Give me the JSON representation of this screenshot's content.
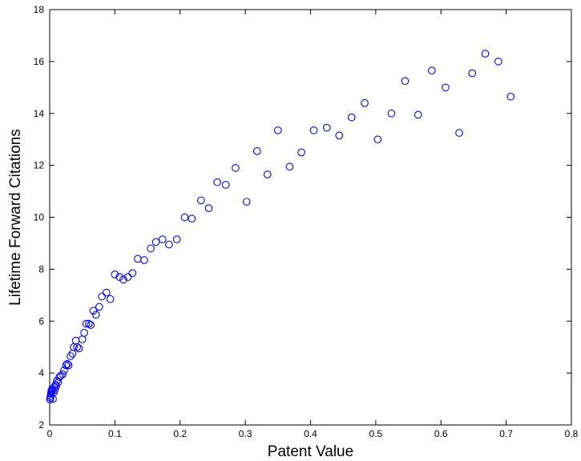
{
  "chart_data": {
    "type": "scatter",
    "title": "",
    "xlabel": "Patent Value",
    "ylabel": "Lifetime Forward Citations",
    "xlim": [
      0,
      0.8
    ],
    "ylim": [
      2,
      18
    ],
    "xticks": [
      "0",
      "0.1",
      "0.2",
      "0.3",
      "0.4",
      "0.5",
      "0.6",
      "0.7",
      "0.8"
    ],
    "yticks": [
      "2",
      "4",
      "6",
      "8",
      "10",
      "12",
      "14",
      "16",
      "18"
    ],
    "grid": false,
    "legend": "none",
    "marker": "circle-open",
    "series_color": "#0000ff",
    "series": [
      {
        "points": [
          [
            0.0005,
            2.98
          ],
          [
            0.001,
            3.05
          ],
          [
            0.0015,
            3.12
          ],
          [
            0.002,
            3.2
          ],
          [
            0.0025,
            3.28
          ],
          [
            0.003,
            3.33
          ],
          [
            0.0035,
            3.3
          ],
          [
            0.004,
            3.4
          ],
          [
            0.005,
            3.0
          ],
          [
            0.006,
            3.25
          ],
          [
            0.007,
            3.45
          ],
          [
            0.008,
            3.35
          ],
          [
            0.009,
            3.55
          ],
          [
            0.01,
            3.5
          ],
          [
            0.011,
            3.7
          ],
          [
            0.013,
            3.65
          ],
          [
            0.015,
            3.85
          ],
          [
            0.017,
            3.9
          ],
          [
            0.02,
            3.95
          ],
          [
            0.022,
            4.1
          ],
          [
            0.025,
            4.3
          ],
          [
            0.027,
            4.35
          ],
          [
            0.029,
            4.3
          ],
          [
            0.032,
            4.65
          ],
          [
            0.035,
            4.75
          ],
          [
            0.037,
            5.0
          ],
          [
            0.04,
            5.25
          ],
          [
            0.042,
            5.0
          ],
          [
            0.045,
            4.95
          ],
          [
            0.05,
            5.3
          ],
          [
            0.053,
            5.55
          ],
          [
            0.056,
            5.9
          ],
          [
            0.06,
            5.9
          ],
          [
            0.063,
            5.85
          ],
          [
            0.067,
            6.4
          ],
          [
            0.071,
            6.25
          ],
          [
            0.076,
            6.55
          ],
          [
            0.08,
            6.95
          ],
          [
            0.087,
            7.1
          ],
          [
            0.093,
            6.85
          ],
          [
            0.1,
            7.8
          ],
          [
            0.107,
            7.7
          ],
          [
            0.113,
            7.6
          ],
          [
            0.12,
            7.7
          ],
          [
            0.127,
            7.85
          ],
          [
            0.135,
            8.4
          ],
          [
            0.145,
            8.35
          ],
          [
            0.155,
            8.8
          ],
          [
            0.163,
            9.05
          ],
          [
            0.173,
            9.15
          ],
          [
            0.183,
            8.95
          ],
          [
            0.195,
            9.15
          ],
          [
            0.207,
            10.0
          ],
          [
            0.218,
            9.95
          ],
          [
            0.232,
            10.65
          ],
          [
            0.244,
            10.35
          ],
          [
            0.257,
            11.35
          ],
          [
            0.27,
            11.25
          ],
          [
            0.285,
            11.9
          ],
          [
            0.302,
            10.6
          ],
          [
            0.318,
            12.55
          ],
          [
            0.334,
            11.65
          ],
          [
            0.35,
            13.35
          ],
          [
            0.368,
            11.95
          ],
          [
            0.386,
            12.5
          ],
          [
            0.405,
            13.35
          ],
          [
            0.425,
            13.45
          ],
          [
            0.444,
            13.15
          ],
          [
            0.463,
            13.85
          ],
          [
            0.483,
            14.4
          ],
          [
            0.503,
            13.0
          ],
          [
            0.524,
            14.0
          ],
          [
            0.545,
            15.25
          ],
          [
            0.565,
            13.95
          ],
          [
            0.586,
            15.65
          ],
          [
            0.607,
            15.0
          ],
          [
            0.628,
            13.25
          ],
          [
            0.648,
            15.55
          ],
          [
            0.668,
            16.3
          ],
          [
            0.688,
            16.0
          ],
          [
            0.707,
            14.65
          ]
        ]
      }
    ]
  }
}
